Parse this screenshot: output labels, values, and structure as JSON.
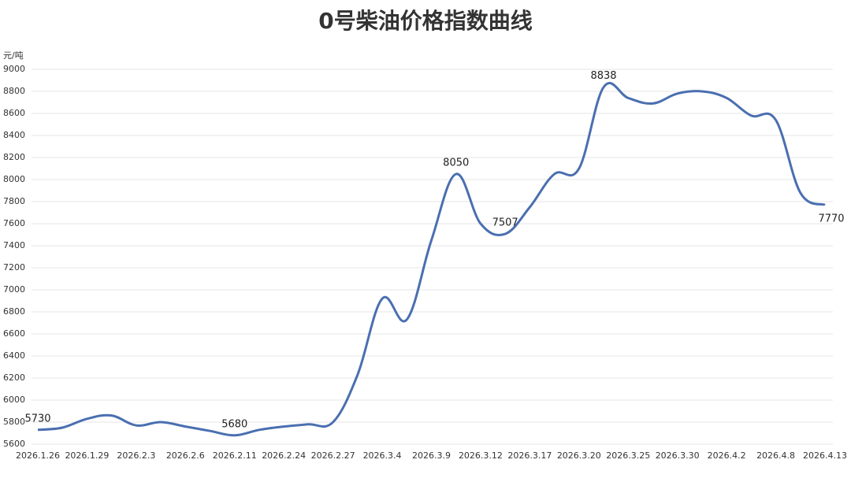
{
  "chart_data": {
    "type": "line",
    "title": "0号柴油价格指数曲线",
    "y_unit": "元/吨",
    "categories": [
      "2026.1.26",
      null,
      "2026.1.29",
      null,
      "2026.2.3",
      null,
      "2026.2.6",
      null,
      "2026.2.11",
      null,
      "2026.2.24",
      null,
      "2026.2.27",
      null,
      "2026.3.4",
      null,
      "2026.3.9",
      null,
      "2026.3.12",
      null,
      "2026.3.17",
      null,
      "2026.3.20",
      null,
      "2026.3.25",
      null,
      "2026.3.30",
      null,
      "2026.4.2",
      null,
      "2026.4.8",
      null,
      "2026.4.13"
    ],
    "series": [
      {
        "name": "0号柴油",
        "color": "#4a6fb0",
        "values": [
          5730,
          5750,
          5830,
          5860,
          5770,
          5800,
          5760,
          5720,
          5680,
          5730,
          5760,
          5780,
          5800,
          6230,
          6920,
          6730,
          7450,
          8050,
          7600,
          7507,
          7750,
          8050,
          8100,
          8838,
          8740,
          8690,
          8780,
          8800,
          8740,
          8580,
          8540,
          7880,
          7770
        ],
        "value_labels": [
          "5730",
          null,
          null,
          null,
          null,
          null,
          null,
          null,
          "5680",
          null,
          null,
          null,
          null,
          null,
          null,
          null,
          null,
          "8050",
          null,
          "7507",
          null,
          null,
          null,
          "8838",
          null,
          null,
          null,
          null,
          null,
          null,
          null,
          null,
          "7770"
        ]
      }
    ],
    "ylim": [
      5600,
      9000
    ],
    "yticks": [
      5600,
      5800,
      6000,
      6200,
      6400,
      6600,
      6800,
      7000,
      7200,
      7400,
      7600,
      7800,
      8000,
      8200,
      8400,
      8600,
      8800,
      9000
    ],
    "grid": true
  }
}
